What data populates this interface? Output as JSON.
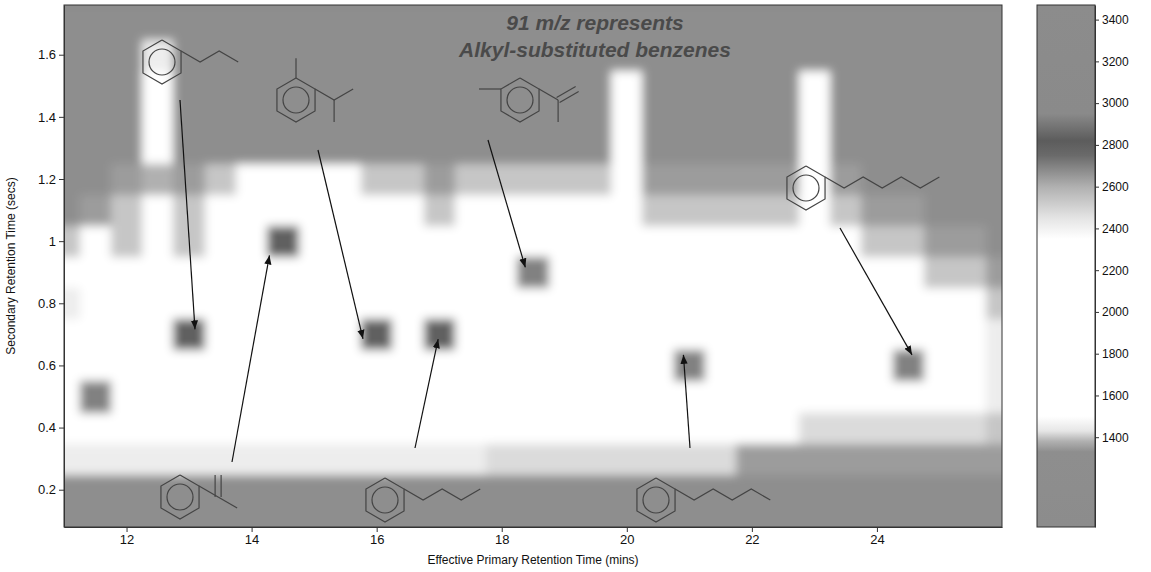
{
  "chart_data": {
    "type": "heatmap",
    "annotations": [
      "91 m/z represents",
      "Alkyl-substituted benzenes"
    ],
    "xlabel": "Effective Primary Retention Time (mins)",
    "ylabel": "Secondary Retention Time (secs)",
    "xlim": [
      11,
      26
    ],
    "xticks": [
      12,
      14,
      16,
      18,
      20,
      22,
      24
    ],
    "ylim": [
      0.08,
      1.76
    ],
    "yticks": [
      0.2,
      0.4,
      0.6,
      0.8,
      1,
      1.2,
      1.4,
      1.6
    ],
    "x": [
      11,
      11.5,
      12,
      12.5,
      13,
      13.5,
      14,
      14.5,
      15,
      15.5,
      16,
      16.5,
      17,
      17.5,
      18,
      18.5,
      19,
      19.5,
      20,
      20.5,
      21,
      21.5,
      22,
      22.5,
      23,
      23.5,
      24,
      24.5,
      25,
      25.5,
      26
    ],
    "y": [
      0.1,
      0.2,
      0.3,
      0.4,
      0.5,
      0.6,
      0.7,
      0.8,
      0.9,
      1,
      1.1,
      1.2,
      1.3,
      1.4,
      1.5,
      1.6,
      1.7
    ],
    "cells": [
      [
        1300,
        1300,
        1300,
        1300,
        1300,
        1300,
        1300,
        1300,
        1300,
        1300,
        1300,
        1300,
        1300,
        1300,
        1300,
        1300,
        1300,
        1300,
        1300,
        1300,
        1300,
        1300,
        1300,
        1300,
        1300,
        1300,
        1300,
        1300,
        1300,
        1300,
        1300
      ],
      [
        1300,
        1300,
        1300,
        1300,
        1300,
        1300,
        1300,
        1300,
        1300,
        1300,
        1300,
        1300,
        1300,
        1300,
        1300,
        1300,
        1300,
        1300,
        1300,
        1300,
        1300,
        1300,
        1300,
        1300,
        1300,
        1300,
        1300,
        1300,
        1300,
        1300,
        1300
      ],
      [
        1450,
        1450,
        1450,
        1450,
        1450,
        1450,
        1450,
        1450,
        1450,
        1450,
        1450,
        1450,
        1450,
        1450,
        1420,
        1420,
        1420,
        1420,
        1420,
        1420,
        1420,
        1420,
        1350,
        1350,
        1350,
        1350,
        1350,
        1350,
        1350,
        1350,
        1350
      ],
      [
        1800,
        1800,
        1800,
        1800,
        1800,
        1800,
        1800,
        1800,
        1800,
        1800,
        1800,
        1800,
        1600,
        1600,
        1600,
        1600,
        1600,
        1600,
        1500,
        1500,
        1500,
        1500,
        1500,
        1500,
        1420,
        1420,
        1420,
        1420,
        1420,
        1420,
        1400
      ],
      [
        2000,
        2700,
        1900,
        1900,
        1900,
        1900,
        1900,
        1900,
        1900,
        1900,
        1900,
        1700,
        1700,
        1700,
        1700,
        1700,
        1700,
        1600,
        1600,
        1600,
        1600,
        1600,
        1600,
        1600,
        1500,
        1500,
        1500,
        1500,
        1500,
        1500,
        1450
      ],
      [
        1700,
        1700,
        1800,
        1900,
        2200,
        1800,
        1800,
        1900,
        1800,
        2000,
        2200,
        1800,
        1900,
        1900,
        1800,
        1700,
        1800,
        1700,
        1800,
        1700,
        2700,
        1800,
        1700,
        1800,
        1700,
        1600,
        1800,
        2700,
        1800,
        1600,
        1450
      ],
      [
        1500,
        1600,
        1800,
        2000,
        2800,
        2000,
        1900,
        1900,
        2000,
        2200,
        2800,
        2000,
        2800,
        2000,
        1900,
        1800,
        1900,
        1800,
        1900,
        1800,
        2200,
        1800,
        1800,
        1900,
        1700,
        1800,
        1900,
        2000,
        1900,
        1700,
        1450
      ],
      [
        1450,
        1500,
        1700,
        1800,
        2000,
        1700,
        1800,
        1700,
        1800,
        1900,
        1900,
        2000,
        1800,
        1900,
        1800,
        2000,
        2000,
        1800,
        1900,
        2000,
        1800,
        1900,
        1700,
        2000,
        1700,
        1800,
        1800,
        1600,
        1700,
        1500,
        1400
      ],
      [
        1500,
        1800,
        1600,
        1500,
        1500,
        1700,
        2000,
        1800,
        1600,
        1700,
        1800,
        2000,
        1700,
        1600,
        1900,
        2700,
        1900,
        1700,
        1800,
        1600,
        1700,
        1600,
        1700,
        1600,
        1500,
        1800,
        1500,
        1500,
        1400,
        1400,
        1350
      ],
      [
        1400,
        1600,
        1400,
        1500,
        1400,
        1600,
        1900,
        2800,
        1600,
        1700,
        1600,
        1700,
        1500,
        1700,
        1800,
        1900,
        1600,
        1700,
        1700,
        1500,
        1500,
        1600,
        1500,
        1500,
        1500,
        1600,
        1400,
        1400,
        1350,
        1350,
        1300
      ],
      [
        1300,
        1350,
        1400,
        1700,
        1400,
        1500,
        1800,
        2000,
        1700,
        2000,
        1600,
        1500,
        1400,
        1600,
        1700,
        1600,
        1500,
        1500,
        1700,
        1400,
        1400,
        1400,
        1400,
        1400,
        1500,
        1400,
        1350,
        1350,
        1300,
        1300,
        1300
      ],
      [
        1300,
        1300,
        1350,
        2600,
        1350,
        1400,
        1500,
        1700,
        1500,
        1800,
        1400,
        1400,
        1350,
        1400,
        1400,
        1400,
        1400,
        1400,
        1600,
        1350,
        1350,
        1350,
        1350,
        1350,
        1500,
        1350,
        1300,
        1300,
        1300,
        1300,
        1300
      ],
      [
        1300,
        1300,
        1300,
        1700,
        1300,
        1300,
        1300,
        1300,
        1300,
        1300,
        1300,
        1300,
        1300,
        1300,
        1300,
        1300,
        1300,
        1300,
        1700,
        1300,
        1300,
        1300,
        1300,
        1300,
        1700,
        1300,
        1300,
        1300,
        1300,
        1300,
        1300
      ],
      [
        1300,
        1300,
        1300,
        1600,
        1300,
        1300,
        1300,
        1300,
        1300,
        1300,
        1300,
        1300,
        1300,
        1300,
        1300,
        1300,
        1300,
        1300,
        1800,
        1300,
        1300,
        1300,
        1300,
        1300,
        1800,
        1300,
        1300,
        1300,
        1300,
        1300,
        1300
      ],
      [
        1300,
        1300,
        1300,
        1500,
        1300,
        1300,
        1300,
        1300,
        1300,
        1300,
        1300,
        1300,
        1300,
        1300,
        1300,
        1300,
        1300,
        1300,
        1500,
        1300,
        1300,
        1300,
        1300,
        1300,
        1500,
        1300,
        1300,
        1300,
        1300,
        1300,
        1300
      ],
      [
        1300,
        1300,
        1300,
        1450,
        1300,
        1300,
        1300,
        1300,
        1300,
        1300,
        1300,
        1300,
        1300,
        1300,
        1300,
        1300,
        1300,
        1300,
        1300,
        1300,
        1300,
        1300,
        1300,
        1300,
        1300,
        1300,
        1300,
        1300,
        1300,
        1300,
        1300
      ],
      [
        1300,
        1300,
        1300,
        1300,
        1300,
        1300,
        1300,
        1300,
        1300,
        1300,
        1300,
        1300,
        1300,
        1300,
        1300,
        1300,
        1300,
        1300,
        1300,
        1300,
        1300,
        1300,
        1300,
        1300,
        1300,
        1300,
        1300,
        1300,
        1300,
        1300,
        1300
      ]
    ],
    "colorbar": {
      "range": [
        970,
        3470
      ],
      "ticks": [
        1400,
        1600,
        1800,
        2000,
        2200,
        2400,
        2600,
        2800,
        3000,
        3200,
        3400
      ]
    },
    "peaks": [
      {
        "x": 13.1,
        "y": 0.7
      },
      {
        "x": 14.3,
        "y": 0.97
      },
      {
        "x": 15.8,
        "y": 0.67
      },
      {
        "x": 17.0,
        "y": 0.7
      },
      {
        "x": 18.4,
        "y": 0.9
      },
      {
        "x": 20.9,
        "y": 0.65
      },
      {
        "x": 24.6,
        "y": 0.62
      }
    ]
  }
}
